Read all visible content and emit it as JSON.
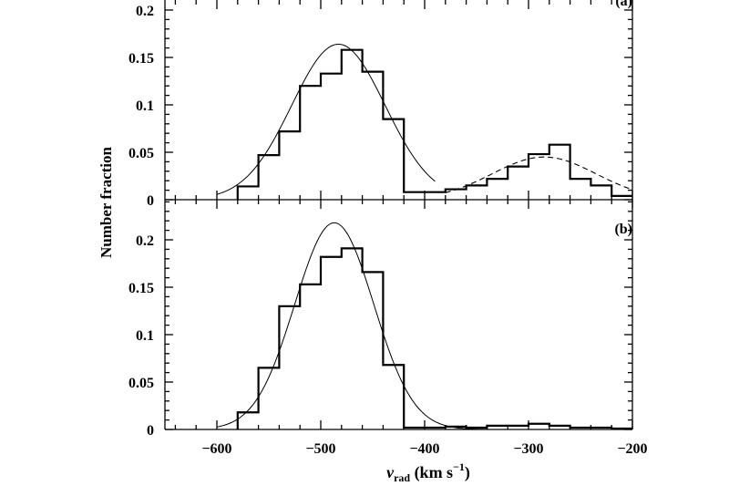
{
  "chart_data": [
    {
      "panel_label": "(a)",
      "type": "histogram",
      "xlim": [
        -650,
        -200
      ],
      "ylim": [
        0,
        0.2
      ],
      "yticks": [
        "0",
        "0.05",
        "0.1",
        "0.15",
        "0.2"
      ],
      "bin_width": 20,
      "bin_left_edges": [
        -580,
        -560,
        -540,
        -520,
        -500,
        -480,
        -460,
        -440,
        -420,
        -400,
        -380,
        -360,
        -340,
        -320,
        -300,
        -280,
        -260,
        -240,
        -220
      ],
      "values": [
        0.014,
        0.047,
        0.072,
        0.12,
        0.133,
        0.158,
        0.135,
        0.085,
        0.008,
        0.008,
        0.011,
        0.015,
        0.022,
        0.035,
        0.048,
        0.058,
        0.022,
        0.015,
        0.004
      ],
      "gaussians": [
        {
          "style": "solid",
          "mean": -483,
          "sigma": 45,
          "amplitude": 0.164,
          "range": [
            -600,
            -390
          ]
        },
        {
          "style": "dashed",
          "mean": -285,
          "sigma": 50,
          "amplitude": 0.045,
          "range": [
            -380,
            -200
          ]
        }
      ]
    },
    {
      "panel_label": "(b)",
      "type": "histogram",
      "xlim": [
        -650,
        -200
      ],
      "ylim": [
        0,
        0.24
      ],
      "yticks": [
        "0",
        "0.05",
        "0.1",
        "0.15",
        "0.2"
      ],
      "xticks": [
        "−600",
        "−500",
        "−400",
        "−300",
        "−200"
      ],
      "bin_width": 20,
      "bin_left_edges": [
        -580,
        -560,
        -540,
        -520,
        -500,
        -480,
        -460,
        -440,
        -420,
        -400,
        -380,
        -360,
        -340,
        -320,
        -300,
        -280,
        -260,
        -240,
        -220
      ],
      "values": [
        0.018,
        0.065,
        0.13,
        0.153,
        0.182,
        0.191,
        0.166,
        0.068,
        0.002,
        0.002,
        0.003,
        0.002,
        0.004,
        0.004,
        0.006,
        0.004,
        0.002,
        0.002,
        0.001
      ],
      "gaussians": [
        {
          "style": "solid",
          "mean": -487,
          "sigma": 38,
          "amplitude": 0.218,
          "range": [
            -600,
            -340
          ]
        }
      ]
    }
  ],
  "labels": {
    "ylabel": "Number fraction",
    "xlabel_main": "v",
    "xlabel_sub": "rad",
    "xlabel_units": " (km s",
    "xlabel_exp": "−1",
    "xlabel_close": ")"
  }
}
